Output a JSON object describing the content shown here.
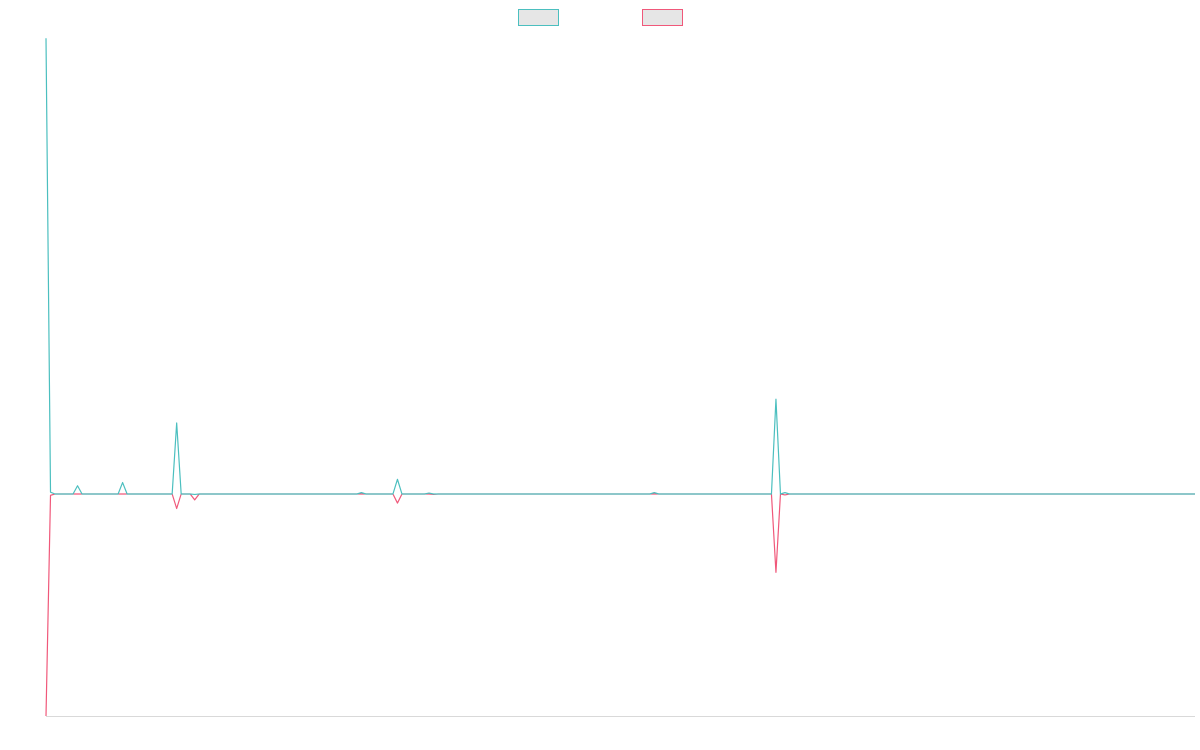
{
  "chart_data": {
    "type": "line",
    "title": "",
    "xlabel": "",
    "ylabel": "",
    "legend_position": "top-center",
    "grid": false,
    "ylim": [
      -1,
      1
    ],
    "x_count": 256,
    "series": [
      {
        "name": "",
        "color": "#4bbfbf",
        "fill": "#e6e6e6",
        "points": [
          [
            0,
            0.995
          ],
          [
            1,
            0.004
          ],
          [
            2,
            0.0
          ],
          [
            6,
            0.0
          ],
          [
            7,
            0.018
          ],
          [
            8,
            0.0
          ],
          [
            16,
            0.0
          ],
          [
            17,
            0.025
          ],
          [
            18,
            0.0
          ],
          [
            28,
            0.0
          ],
          [
            29,
            0.155
          ],
          [
            30,
            0.0
          ],
          [
            31,
            0.0
          ],
          [
            32,
            0.0
          ],
          [
            33,
            -0.001
          ],
          [
            34,
            0.0
          ],
          [
            69,
            0.0
          ],
          [
            70,
            0.003
          ],
          [
            71,
            0.0
          ],
          [
            77,
            0.0
          ],
          [
            78,
            0.032
          ],
          [
            79,
            0.0
          ],
          [
            84,
            0.0
          ],
          [
            85,
            0.002
          ],
          [
            86,
            0.0
          ],
          [
            134,
            0.0
          ],
          [
            135,
            0.003
          ],
          [
            136,
            0.0
          ],
          [
            161,
            0.0
          ],
          [
            162,
            0.207
          ],
          [
            163,
            0.0
          ],
          [
            164,
            0.003
          ],
          [
            165,
            0.0
          ],
          [
            255,
            0.0
          ]
        ]
      },
      {
        "name": "",
        "color": "#f0587a",
        "fill": "#e6e6e6",
        "points": [
          [
            0,
            -0.49
          ],
          [
            1,
            -0.003
          ],
          [
            2,
            0.0
          ],
          [
            28,
            0.0
          ],
          [
            29,
            -0.032
          ],
          [
            30,
            0.0
          ],
          [
            32,
            0.0
          ],
          [
            33,
            -0.013
          ],
          [
            34,
            0.0
          ],
          [
            77,
            0.0
          ],
          [
            78,
            -0.02
          ],
          [
            79,
            0.0
          ],
          [
            85,
            0.0
          ],
          [
            86,
            -0.001
          ],
          [
            87,
            0.0
          ],
          [
            161,
            0.0
          ],
          [
            162,
            -0.173
          ],
          [
            163,
            0.0
          ],
          [
            164,
            -0.002
          ],
          [
            165,
            0.0
          ],
          [
            255,
            0.0
          ]
        ]
      }
    ]
  }
}
